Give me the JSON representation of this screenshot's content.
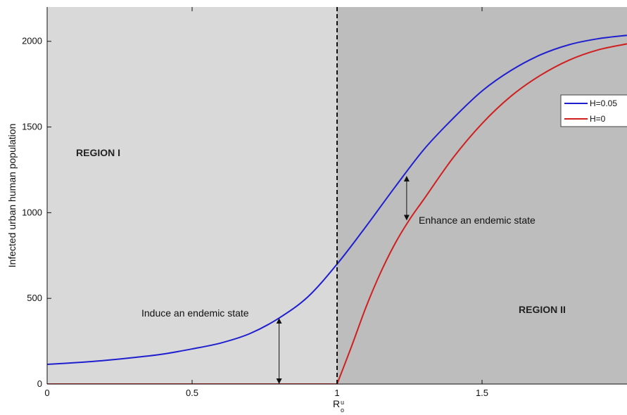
{
  "chart_data": {
    "type": "line",
    "title": "",
    "xlabel": "R",
    "xlabel_sup": "u",
    "xlabel_sub": "o",
    "ylabel": "Infected urban human population",
    "xlim": [
      0,
      2
    ],
    "ylim": [
      0,
      2200
    ],
    "xticks": [
      0,
      0.5,
      1,
      1.5
    ],
    "xtick_labels": [
      "0",
      "0.5",
      "1",
      "1.5"
    ],
    "yticks": [
      0,
      500,
      1000,
      1500,
      2000
    ],
    "ytick_labels": [
      "0",
      "500",
      "1000",
      "1500",
      "2000"
    ],
    "grid": false,
    "legend_position": "top-right",
    "threshold_x": 1,
    "regions": [
      {
        "label": "REGION I",
        "x_range": [
          0,
          1
        ],
        "color": "#d9d9d9"
      },
      {
        "label": "REGION II",
        "x_range": [
          1,
          2
        ],
        "color": "#bdbdbd"
      }
    ],
    "series": [
      {
        "name": "H=0.05",
        "color": "#1f1fd0",
        "x": [
          0,
          0.1,
          0.2,
          0.3,
          0.4,
          0.5,
          0.6,
          0.7,
          0.8,
          0.9,
          1.0,
          1.1,
          1.2,
          1.3,
          1.4,
          1.5,
          1.6,
          1.7,
          1.8,
          1.9,
          2.0
        ],
        "y": [
          115,
          125,
          138,
          155,
          175,
          205,
          240,
          295,
          385,
          510,
          700,
          920,
          1150,
          1370,
          1550,
          1710,
          1830,
          1920,
          1980,
          2015,
          2035
        ]
      },
      {
        "name": "H=0",
        "color": "#d01f1f",
        "x": [
          0,
          0.2,
          0.4,
          0.6,
          0.8,
          1.0,
          1.05,
          1.1,
          1.15,
          1.2,
          1.25,
          1.3,
          1.4,
          1.5,
          1.6,
          1.7,
          1.8,
          1.9,
          2.0
        ],
        "y": [
          0,
          0,
          0,
          0,
          0,
          0,
          220,
          450,
          650,
          820,
          960,
          1080,
          1320,
          1520,
          1680,
          1800,
          1890,
          1950,
          1985
        ]
      }
    ],
    "annotations": [
      {
        "text": "Induce an endemic state",
        "x": 0.8,
        "y_from": 0,
        "y_to": 385
      },
      {
        "text": "Enhance an endemic state",
        "x": 1.24,
        "y_from": 955,
        "y_to": 1215
      }
    ]
  }
}
